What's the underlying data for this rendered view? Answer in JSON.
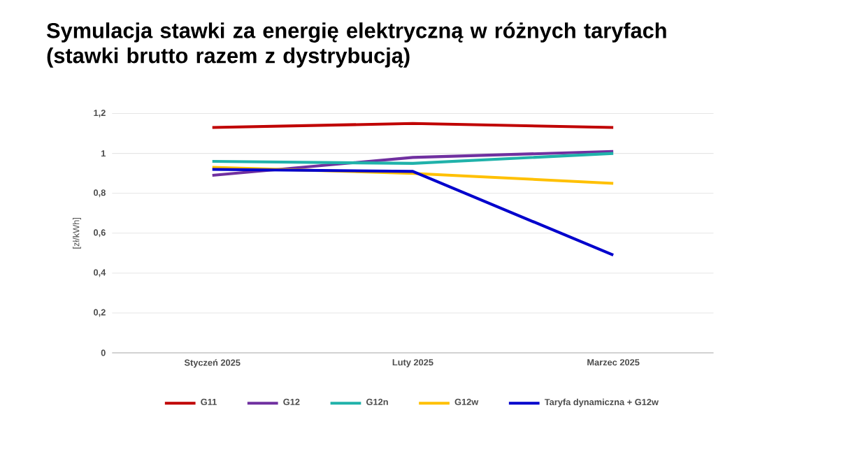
{
  "chart_data": {
    "type": "line",
    "title": "Symulacja stawki za energię elektryczną w różnych taryfach (stawki brutto razem z dystrybucją)",
    "ylabel": "[zł/kWh]",
    "categories": [
      "Styczeń 2025",
      "Luty 2025",
      "Marzec 2025"
    ],
    "series": [
      {
        "name": "G11",
        "color": "#c00000",
        "values": [
          1.13,
          1.15,
          1.13
        ]
      },
      {
        "name": "G12",
        "color": "#7030a0",
        "values": [
          0.89,
          0.98,
          1.01
        ]
      },
      {
        "name": "G12n",
        "color": "#20b2aa",
        "values": [
          0.96,
          0.95,
          1.0
        ]
      },
      {
        "name": "G12w",
        "color": "#ffc000",
        "values": [
          0.93,
          0.9,
          0.85
        ]
      },
      {
        "name": "Taryfa dynamiczna + G12w",
        "color": "#0000cc",
        "values": [
          0.92,
          0.91,
          0.49
        ]
      }
    ],
    "ylim": [
      0,
      1.2
    ],
    "yticks": [
      0,
      {
        "value": 0.2,
        "label": "0,2"
      },
      {
        "value": 0.4,
        "label": "0,4"
      },
      {
        "value": 0.6,
        "label": "0,6"
      },
      {
        "value": 0.8,
        "label": "0,8"
      },
      1,
      {
        "value": 1.2,
        "label": "1,2"
      }
    ],
    "grid": "y",
    "legend": "bottom",
    "marker": "none",
    "line_style": "solid"
  }
}
